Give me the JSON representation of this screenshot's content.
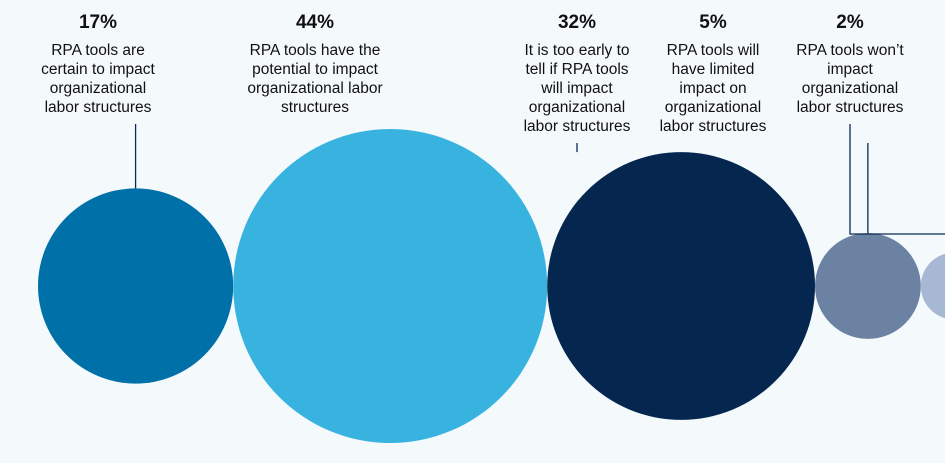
{
  "chart_data": {
    "type": "bubble",
    "title": "",
    "series": [
      {
        "name": "certain",
        "value": 17,
        "label": "17%",
        "description": [
          "RPA tools are",
          "certain to impact",
          "organizational",
          "labor structures"
        ],
        "color": "#0070a8"
      },
      {
        "name": "potential",
        "value": 44,
        "label": "44%",
        "description": [
          "RPA tools have the",
          "potential to impact",
          "organizational labor",
          "structures"
        ],
        "color": "#38b3e0"
      },
      {
        "name": "too-early",
        "value": 32,
        "label": "32%",
        "description": [
          "It is too early to",
          "tell if RPA tools",
          "will impact",
          "organizational",
          "labor structures"
        ],
        "color": "#04264f"
      },
      {
        "name": "limited",
        "value": 5,
        "label": "5%",
        "description": [
          "RPA tools will",
          "have limited",
          "impact on",
          "organizational",
          "labor structures"
        ],
        "color": "#6c82a3"
      },
      {
        "name": "no-impact",
        "value": 2,
        "label": "2%",
        "description": [
          "RPA tools won’t",
          "impact",
          "organizational",
          "labor structures"
        ],
        "color": "#a6b8d4"
      }
    ]
  }
}
